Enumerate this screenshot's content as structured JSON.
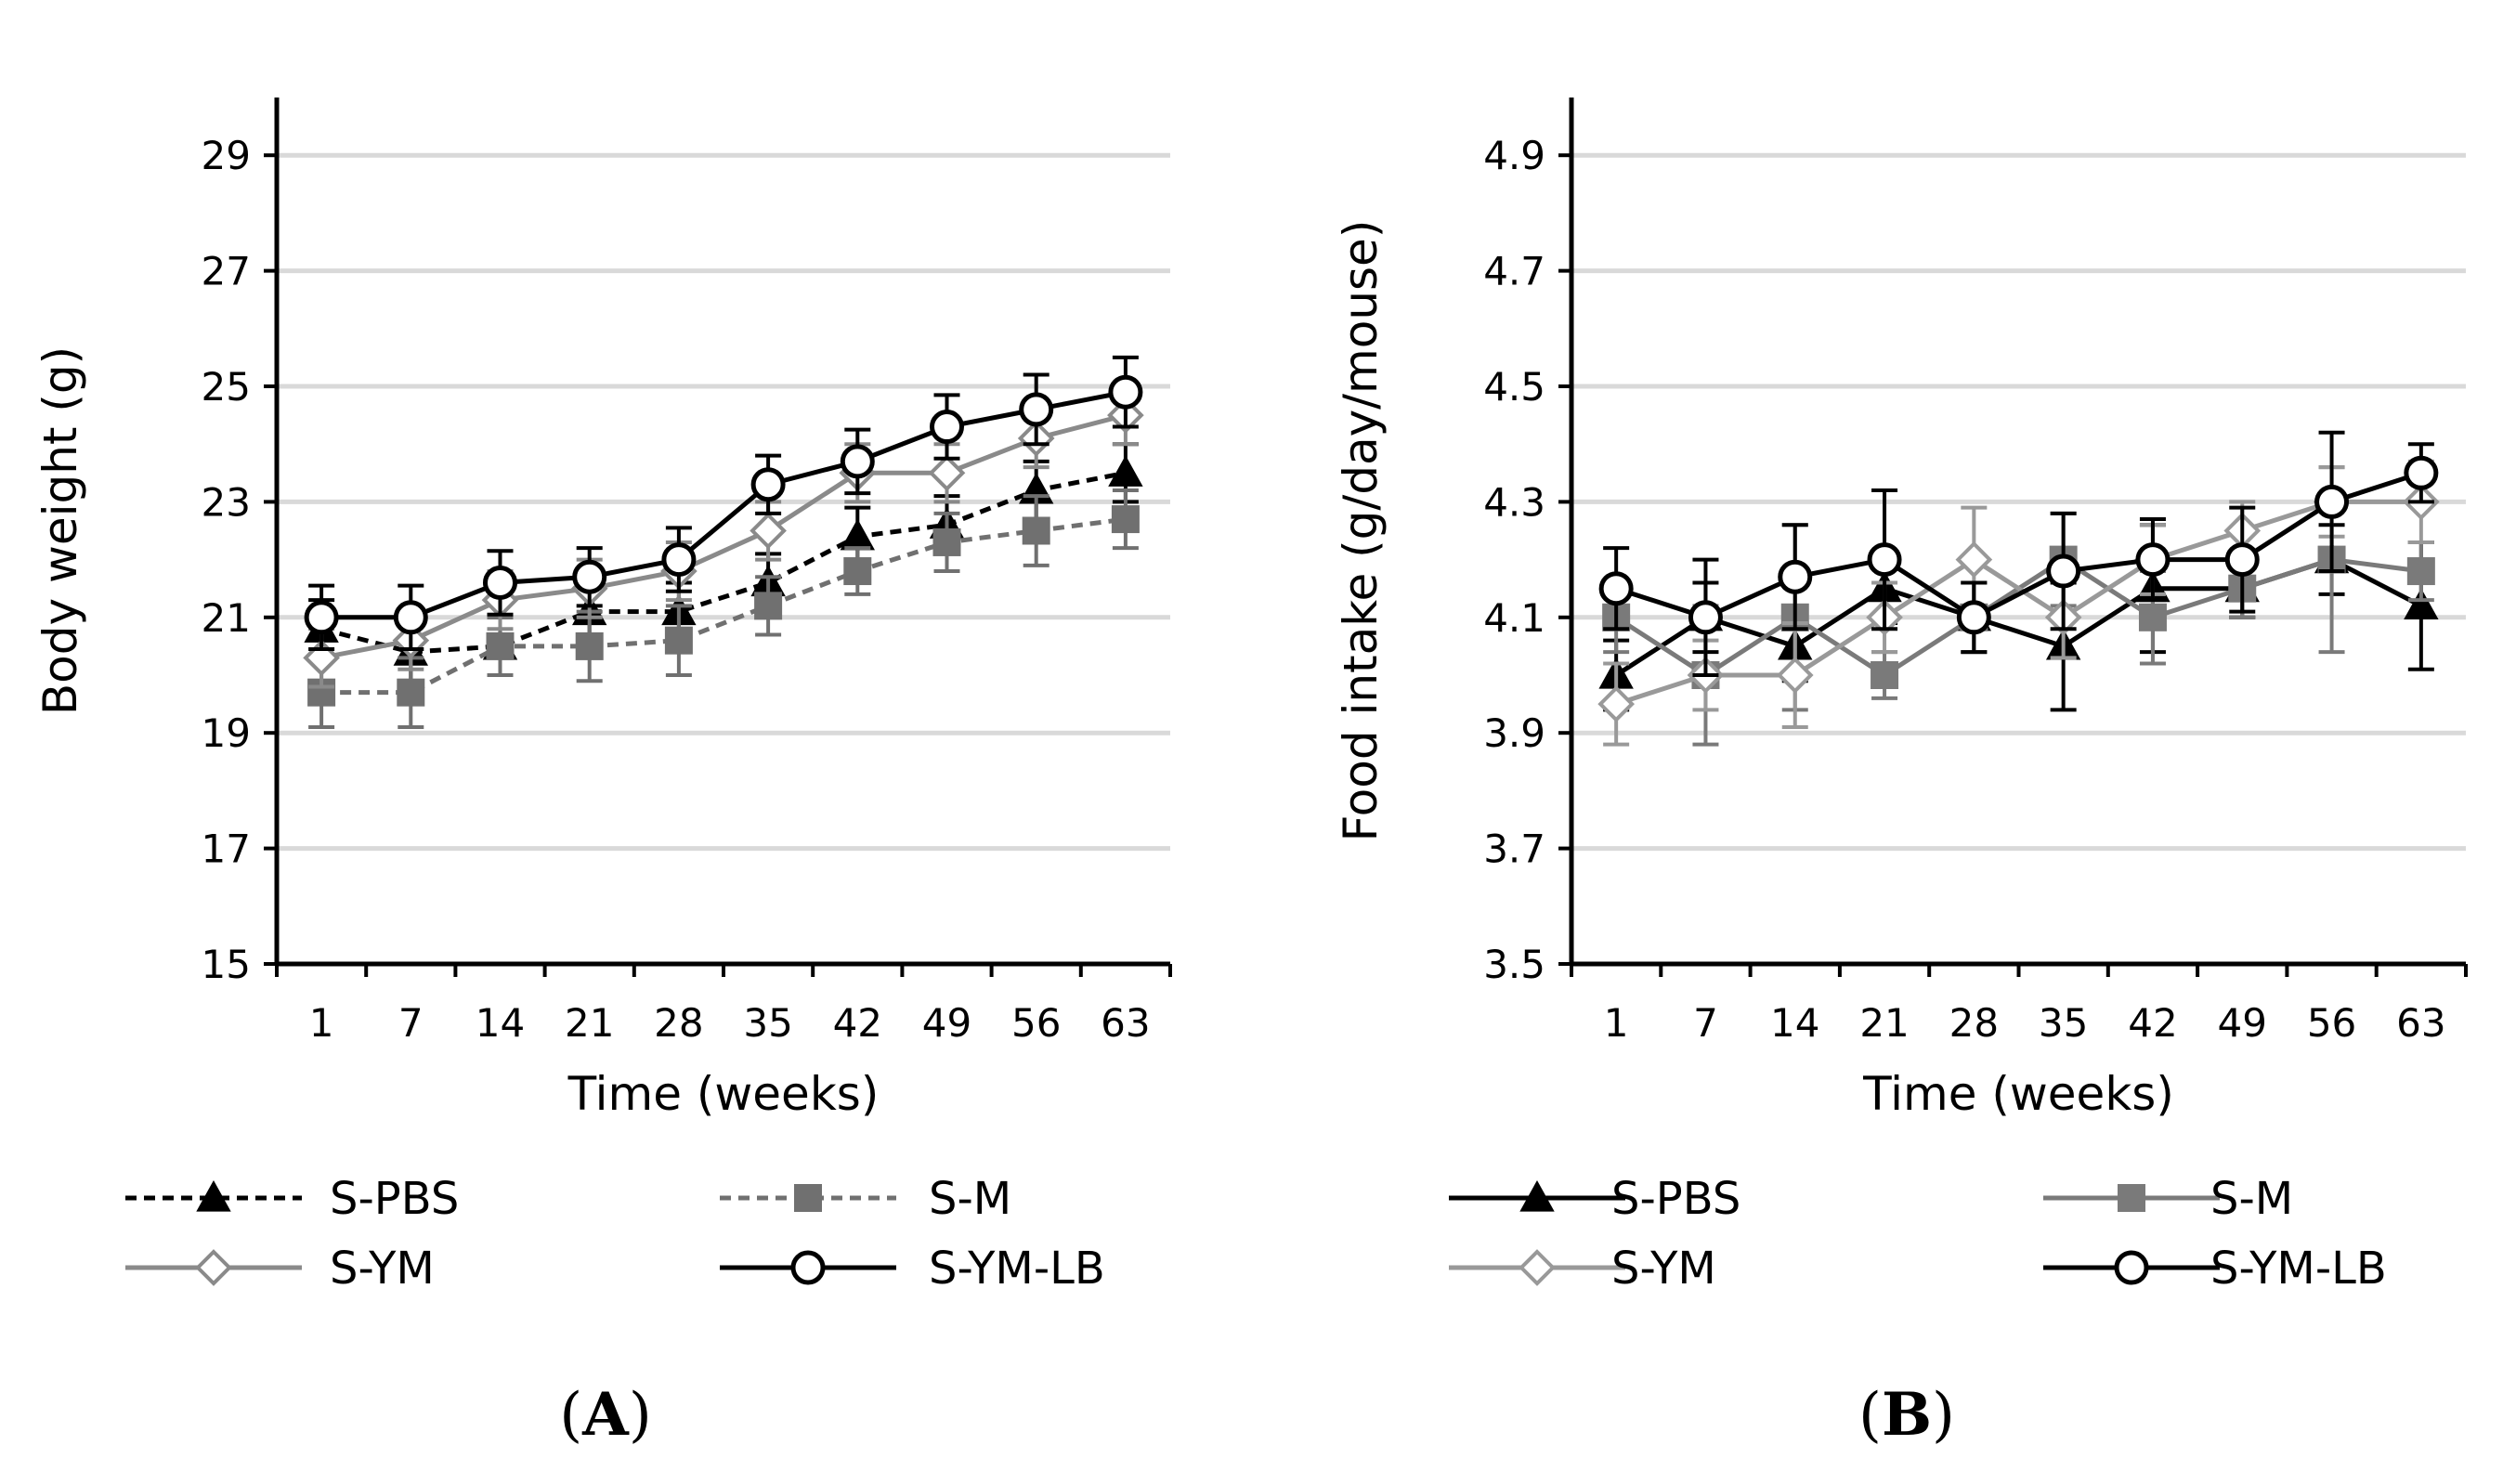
{
  "chart_data": [
    {
      "type": "line",
      "panel_label": "A",
      "xlabel": "Time (weeks)",
      "ylabel": "Body weight (g)",
      "categories": [
        "1",
        "7",
        "14",
        "21",
        "28",
        "35",
        "42",
        "49",
        "56",
        "63"
      ],
      "ylim": [
        15,
        30
      ],
      "yticks": [
        "15",
        "17",
        "19",
        "21",
        "23",
        "25",
        "27",
        "29"
      ],
      "grid": true,
      "legend_position": "bottom",
      "series": [
        {
          "name": "S-PBS",
          "color": "#000000",
          "marker": "triangle",
          "dashed": true,
          "values": [
            20.8,
            20.4,
            20.5,
            21.1,
            21.1,
            21.6,
            22.4,
            22.6,
            23.2,
            23.5
          ],
          "errors": [
            0.5,
            0.5,
            0.5,
            0.5,
            0.5,
            0.5,
            0.5,
            0.5,
            0.5,
            0.5
          ]
        },
        {
          "name": "S-M",
          "color": "#707070",
          "marker": "square",
          "dashed": true,
          "values": [
            19.7,
            19.7,
            20.5,
            20.5,
            20.6,
            21.2,
            21.8,
            22.3,
            22.5,
            22.7
          ],
          "errors": [
            0.6,
            0.6,
            0.5,
            0.6,
            0.6,
            0.5,
            0.4,
            0.5,
            0.6,
            0.5
          ]
        },
        {
          "name": "S-YM",
          "color": "#8a8a8a",
          "marker": "diamond",
          "dashed": false,
          "values": [
            20.3,
            20.6,
            21.3,
            21.5,
            21.8,
            22.5,
            23.5,
            23.5,
            24.1,
            24.5
          ],
          "errors": [
            0.5,
            0.5,
            0.5,
            0.5,
            0.5,
            0.5,
            0.5,
            0.5,
            0.5,
            0.5
          ]
        },
        {
          "name": "S-YM-LB",
          "color": "#000000",
          "marker": "circle",
          "dashed": false,
          "values": [
            21.0,
            21.0,
            21.6,
            21.7,
            22.0,
            23.3,
            23.7,
            24.3,
            24.6,
            24.9
          ],
          "errors": [
            0.55,
            0.55,
            0.55,
            0.5,
            0.55,
            0.5,
            0.55,
            0.55,
            0.6,
            0.6
          ]
        }
      ]
    },
    {
      "type": "line",
      "panel_label": "B",
      "xlabel": "Time (weeks)",
      "ylabel": "Food intake (g/day/mouse)",
      "categories": [
        "1",
        "7",
        "14",
        "21",
        "28",
        "35",
        "42",
        "49",
        "56",
        "63"
      ],
      "ylim": [
        3.5,
        5.0
      ],
      "yticks": [
        "3.5",
        "3.7",
        "3.9",
        "4.1",
        "4.3",
        "4.5",
        "4.7",
        "4.9"
      ],
      "grid": true,
      "legend_position": "bottom",
      "series": [
        {
          "name": "S-PBS",
          "color": "#000000",
          "marker": "triangle",
          "dashed": false,
          "values": [
            4.0,
            4.1,
            4.05,
            4.15,
            4.1,
            4.05,
            4.15,
            4.15,
            4.2,
            4.12
          ],
          "errors": [
            0.06,
            0.06,
            0.06,
            0.06,
            0.06,
            0.11,
            0.11,
            0.05,
            0.06,
            0.11
          ]
        },
        {
          "name": "S-M",
          "color": "#7a7a7a",
          "marker": "square",
          "dashed": false,
          "values": [
            4.1,
            4.0,
            4.1,
            4.0,
            4.1,
            4.2,
            4.1,
            4.15,
            4.2,
            4.18
          ],
          "errors": [
            0.06,
            0.12,
            0.16,
            0.04,
            0.06,
            0.08,
            0.08,
            0.05,
            0.16,
            0.05
          ]
        },
        {
          "name": "S-YM",
          "color": "#999999",
          "marker": "diamond",
          "dashed": false,
          "values": [
            3.95,
            4.0,
            4.0,
            4.1,
            4.2,
            4.1,
            4.2,
            4.25,
            4.3,
            4.3
          ],
          "errors": [
            0.07,
            0.06,
            0.09,
            0.06,
            0.09,
            0.07,
            0.06,
            0.05,
            0.06,
            0.07
          ]
        },
        {
          "name": "S-YM-LB",
          "color": "#000000",
          "marker": "circle",
          "dashed": false,
          "values": [
            4.15,
            4.1,
            4.17,
            4.2,
            4.1,
            4.18,
            4.2,
            4.2,
            4.3,
            4.35
          ],
          "errors": [
            0.07,
            0.1,
            0.09,
            0.12,
            0.06,
            0.1,
            0.07,
            0.09,
            0.12,
            0.05
          ]
        }
      ]
    }
  ]
}
